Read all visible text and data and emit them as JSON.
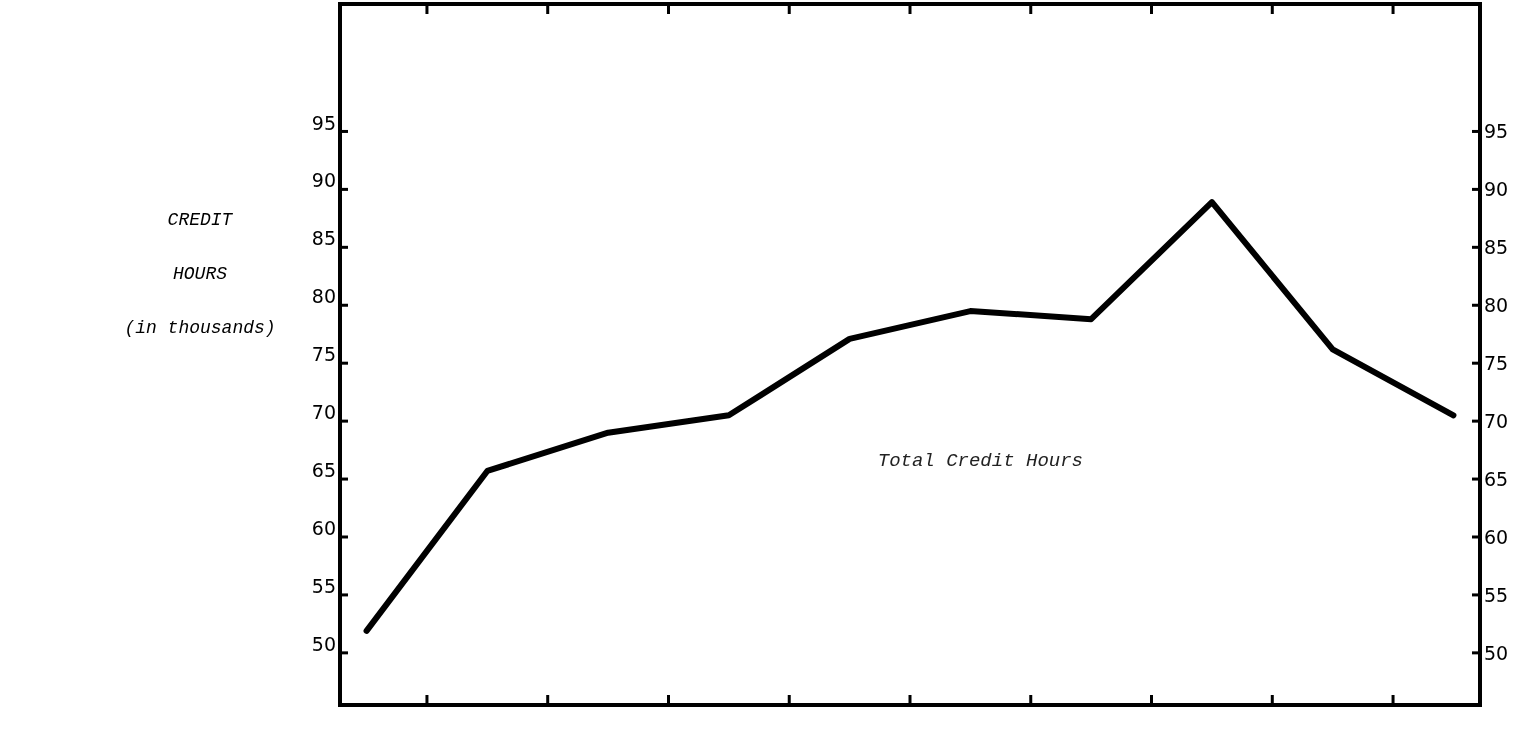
{
  "chart_data": {
    "type": "line",
    "ylabel": "CREDIT\nHOURS\n(in thousands)",
    "categories": [
      null,
      null,
      null,
      null,
      null,
      null,
      null,
      null,
      null,
      null
    ],
    "series": [
      {
        "name": "Total Credit Hours",
        "color": "#000000",
        "values": [
          51.9,
          65.7,
          69.0,
          70.5,
          77.1,
          79.5,
          78.8,
          88.9,
          76.2,
          70.5
        ]
      }
    ],
    "ylim": [
      45.5,
      106
    ],
    "yticks": [
      50,
      55,
      60,
      65,
      70,
      75,
      80,
      85,
      90,
      95
    ],
    "y2lim": [
      45.5,
      106
    ],
    "y2ticks": [
      50,
      55,
      60,
      65,
      70,
      75,
      80,
      85,
      90,
      95
    ],
    "grid": false,
    "marker": "none",
    "line_style": "solid"
  }
}
